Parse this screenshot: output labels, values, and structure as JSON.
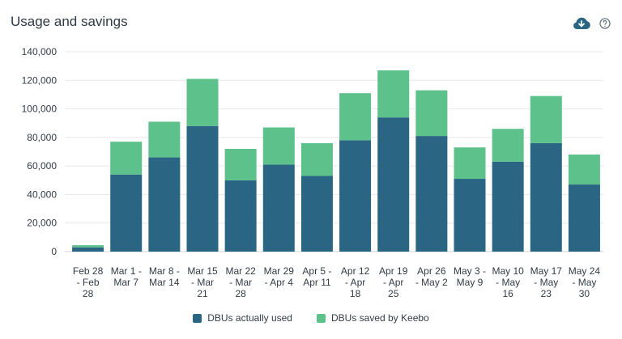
{
  "header": {
    "title": "Usage and savings",
    "download_icon": "cloud-download-icon",
    "help_icon": "help-circle-icon"
  },
  "colors": {
    "used": "#2a6683",
    "saved": "#5cc18b",
    "grid": "#e6e8eb",
    "text": "#333b45"
  },
  "chart_data": {
    "type": "bar",
    "stacked": true,
    "title": "Usage and savings",
    "categories": [
      [
        "Feb 28",
        "- Feb",
        "28"
      ],
      [
        "Mar 1 -",
        "Mar 7"
      ],
      [
        "Mar 8 -",
        "Mar 14"
      ],
      [
        "Mar 15",
        "- Mar",
        "21"
      ],
      [
        "Mar 22",
        "- Mar",
        "28"
      ],
      [
        "Mar 29",
        "- Apr 4"
      ],
      [
        "Apr 5 -",
        "Apr 11"
      ],
      [
        "Apr 12",
        "- Apr",
        "18"
      ],
      [
        "Apr 19",
        "- Apr",
        "25"
      ],
      [
        "Apr 26",
        "- May 2"
      ],
      [
        "May 3 -",
        "May 9"
      ],
      [
        "May 10",
        "- May",
        "16"
      ],
      [
        "May 17",
        "- May",
        "23"
      ],
      [
        "May 24",
        "- May",
        "30"
      ]
    ],
    "series": [
      {
        "name": "DBUs actually used",
        "values": [
          3000,
          54000,
          66000,
          88000,
          50000,
          61000,
          53000,
          78000,
          94000,
          81000,
          51000,
          63000,
          76000,
          47000
        ]
      },
      {
        "name": "DBUs saved by Keebo",
        "values": [
          1500,
          23000,
          25000,
          33000,
          22000,
          26000,
          23000,
          33000,
          33000,
          32000,
          22000,
          23000,
          33000,
          21000
        ]
      }
    ],
    "ylim": [
      0,
      140000
    ],
    "yticks": [
      "0",
      "20,000",
      "40,000",
      "60,000",
      "80,000",
      "100,000",
      "120,000",
      "140,000"
    ],
    "grid": true,
    "legend_position": "bottom-center"
  }
}
